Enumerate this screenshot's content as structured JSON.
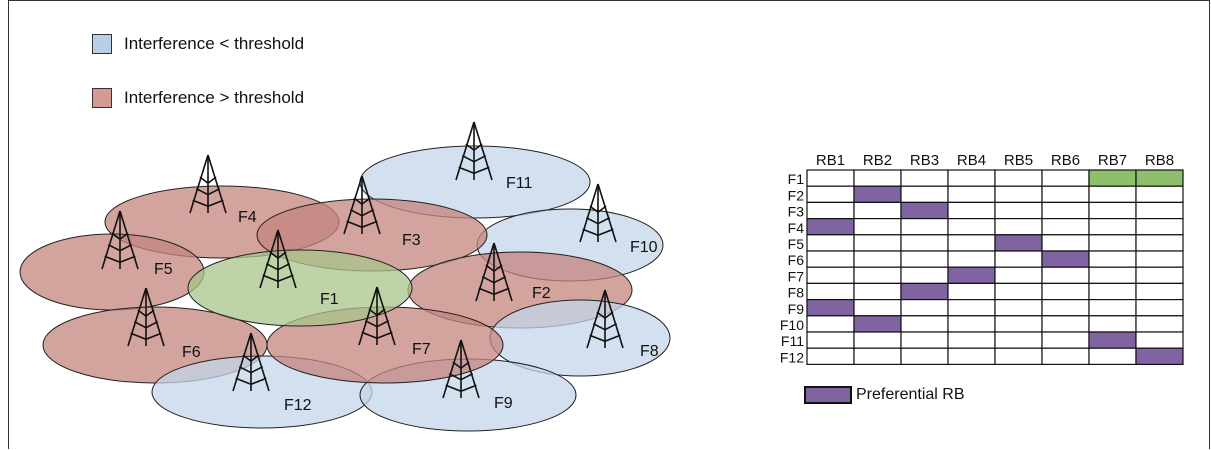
{
  "legend": [
    {
      "label": "Interference < threshold",
      "color": "#b8cfe6"
    },
    {
      "label": "Interference > threshold",
      "color": "#d49a94"
    }
  ],
  "colors": {
    "blue_cell": "#c4d6ea",
    "red_cell": "#c4847d",
    "green_cell": "#a8c48a",
    "preferential": "#8064a2",
    "green_rb": "#8ec06c"
  },
  "cells": [
    {
      "id": "F1",
      "label": "F1",
      "type": "green"
    },
    {
      "id": "F2",
      "label": "F2",
      "type": "red"
    },
    {
      "id": "F3",
      "label": "F3",
      "type": "red"
    },
    {
      "id": "F4",
      "label": "F4",
      "type": "red"
    },
    {
      "id": "F5",
      "label": "F5",
      "type": "red"
    },
    {
      "id": "F6",
      "label": "F6",
      "type": "red"
    },
    {
      "id": "F7",
      "label": "F7",
      "type": "red"
    },
    {
      "id": "F8",
      "label": "F8",
      "type": "blue"
    },
    {
      "id": "F9",
      "label": "F9",
      "type": "blue"
    },
    {
      "id": "F10",
      "label": "F10",
      "type": "blue"
    },
    {
      "id": "F11",
      "label": "F11",
      "type": "blue"
    },
    {
      "id": "F12",
      "label": "F12",
      "type": "blue"
    }
  ],
  "rb_table": {
    "columns": [
      "RB1",
      "RB2",
      "RB3",
      "RB4",
      "RB5",
      "RB6",
      "RB7",
      "RB8"
    ],
    "rows": [
      "F1",
      "F2",
      "F3",
      "F4",
      "F5",
      "F6",
      "F7",
      "F8",
      "F9",
      "F10",
      "F11",
      "F12"
    ],
    "assignments": [
      {
        "row": "F1",
        "rbs": [
          "RB7",
          "RB8"
        ],
        "kind": "green"
      },
      {
        "row": "F2",
        "rbs": [
          "RB2"
        ],
        "kind": "preferential"
      },
      {
        "row": "F3",
        "rbs": [
          "RB3"
        ],
        "kind": "preferential"
      },
      {
        "row": "F4",
        "rbs": [
          "RB1"
        ],
        "kind": "preferential"
      },
      {
        "row": "F5",
        "rbs": [
          "RB5"
        ],
        "kind": "preferential"
      },
      {
        "row": "F6",
        "rbs": [
          "RB6"
        ],
        "kind": "preferential"
      },
      {
        "row": "F7",
        "rbs": [
          "RB4"
        ],
        "kind": "preferential"
      },
      {
        "row": "F8",
        "rbs": [
          "RB3"
        ],
        "kind": "preferential"
      },
      {
        "row": "F9",
        "rbs": [
          "RB1"
        ],
        "kind": "preferential"
      },
      {
        "row": "F10",
        "rbs": [
          "RB2"
        ],
        "kind": "preferential"
      },
      {
        "row": "F11",
        "rbs": [
          "RB7"
        ],
        "kind": "preferential"
      },
      {
        "row": "F12",
        "rbs": [
          "RB8"
        ],
        "kind": "preferential"
      }
    ],
    "legend_label": "Preferential RB"
  }
}
